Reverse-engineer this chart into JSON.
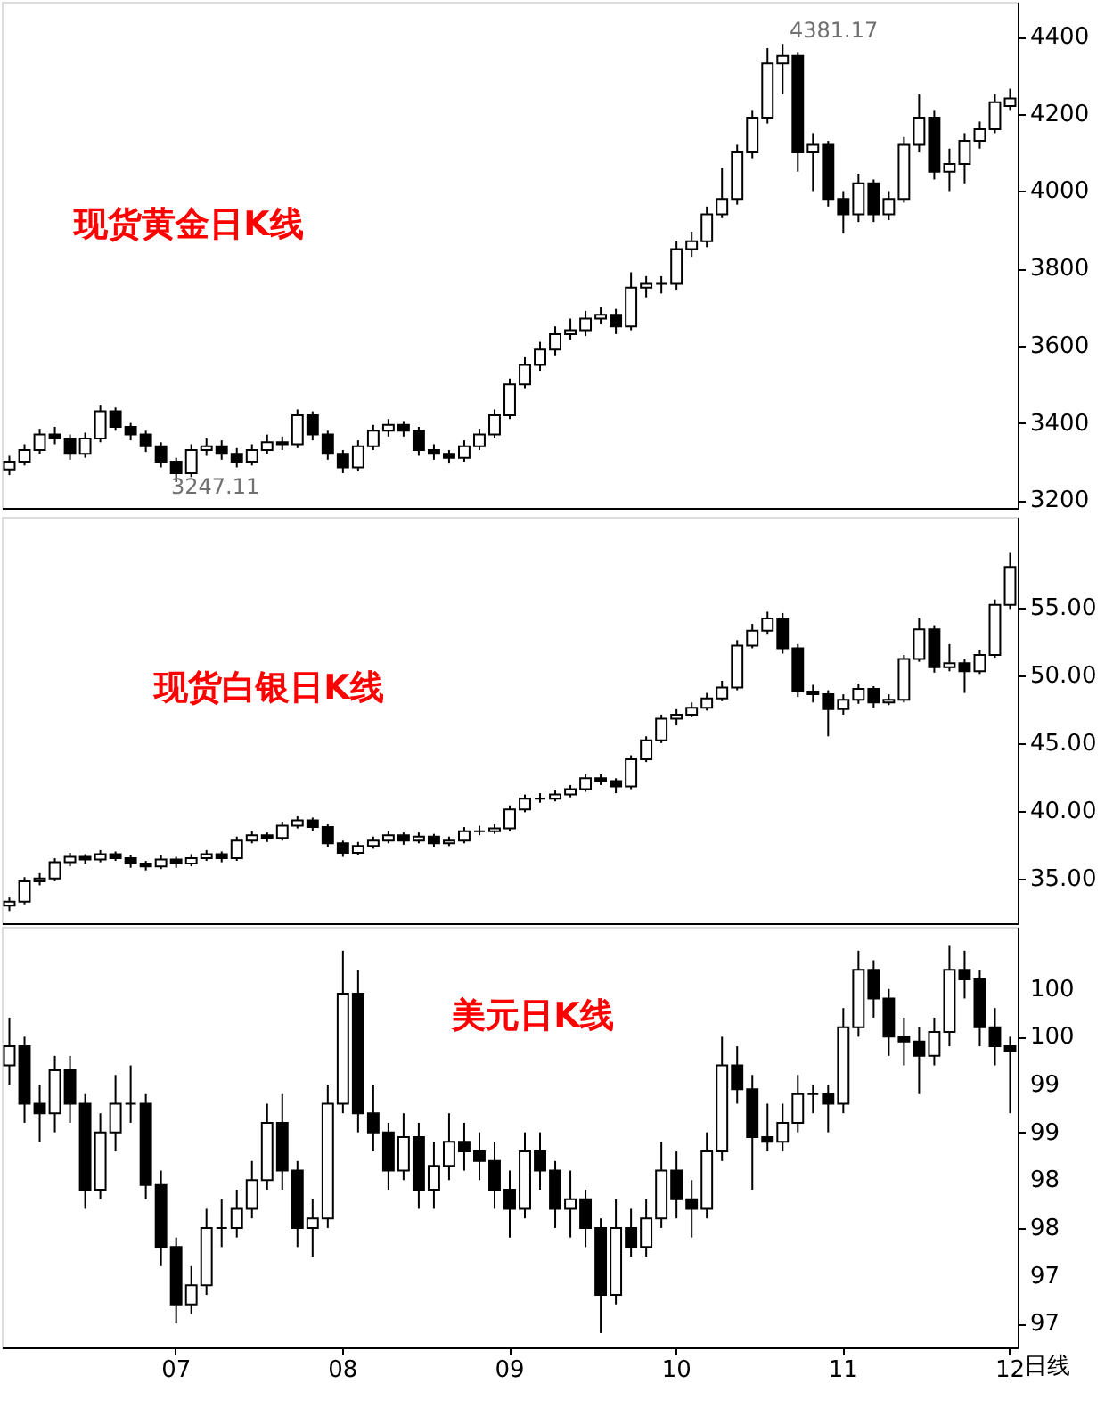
{
  "chart_data": [
    {
      "type": "candlestick",
      "title": "现货黄金日K线",
      "categories": [
        null,
        null,
        null,
        null,
        null,
        null,
        null,
        null,
        null,
        null,
        null,
        "07",
        null,
        null,
        null,
        null,
        null,
        null,
        null,
        null,
        null,
        null,
        "08",
        null,
        null,
        null,
        null,
        null,
        null,
        null,
        null,
        null,
        null,
        "09",
        null,
        null,
        null,
        null,
        null,
        null,
        null,
        null,
        null,
        null,
        "10",
        null,
        null,
        null,
        null,
        null,
        null,
        null,
        null,
        null,
        null,
        "11",
        null,
        null,
        null,
        null,
        null,
        null,
        null,
        null,
        null,
        null,
        "12"
      ],
      "ohlc": [
        [
          3280,
          3315,
          3265,
          3300
        ],
        [
          3300,
          3345,
          3290,
          3330
        ],
        [
          3330,
          3385,
          3320,
          3370
        ],
        [
          3370,
          3390,
          3345,
          3360
        ],
        [
          3360,
          3370,
          3305,
          3320
        ],
        [
          3320,
          3375,
          3310,
          3360
        ],
        [
          3360,
          3445,
          3350,
          3430
        ],
        [
          3430,
          3440,
          3380,
          3390
        ],
        [
          3390,
          3400,
          3355,
          3370
        ],
        [
          3370,
          3380,
          3325,
          3340
        ],
        [
          3340,
          3350,
          3285,
          3300
        ],
        [
          3300,
          3310,
          3247.11,
          3270
        ],
        [
          3270,
          3345,
          3260,
          3330
        ],
        [
          3330,
          3360,
          3315,
          3340
        ],
        [
          3340,
          3355,
          3305,
          3320
        ],
        [
          3320,
          3335,
          3285,
          3300
        ],
        [
          3300,
          3345,
          3290,
          3330
        ],
        [
          3330,
          3370,
          3320,
          3350
        ],
        [
          3350,
          3365,
          3330,
          3345
        ],
        [
          3345,
          3435,
          3335,
          3420
        ],
        [
          3420,
          3430,
          3355,
          3370
        ],
        [
          3370,
          3380,
          3305,
          3320
        ],
        [
          3320,
          3330,
          3270,
          3285
        ],
        [
          3285,
          3355,
          3275,
          3340
        ],
        [
          3340,
          3395,
          3330,
          3380
        ],
        [
          3380,
          3410,
          3365,
          3395
        ],
        [
          3395,
          3405,
          3365,
          3380
        ],
        [
          3380,
          3390,
          3315,
          3330
        ],
        [
          3330,
          3345,
          3305,
          3320
        ],
        [
          3320,
          3330,
          3295,
          3310
        ],
        [
          3310,
          3355,
          3300,
          3340
        ],
        [
          3340,
          3385,
          3330,
          3370
        ],
        [
          3370,
          3435,
          3360,
          3420
        ],
        [
          3420,
          3515,
          3410,
          3500
        ],
        [
          3500,
          3570,
          3490,
          3550
        ],
        [
          3550,
          3610,
          3535,
          3590
        ],
        [
          3590,
          3650,
          3575,
          3630
        ],
        [
          3630,
          3670,
          3615,
          3640
        ],
        [
          3640,
          3690,
          3625,
          3670
        ],
        [
          3670,
          3700,
          3655,
          3680
        ],
        [
          3680,
          3695,
          3630,
          3650
        ],
        [
          3650,
          3790,
          3640,
          3750
        ],
        [
          3750,
          3780,
          3725,
          3760
        ],
        [
          3760,
          3780,
          3735,
          3760
        ],
        [
          3760,
          3870,
          3745,
          3850
        ],
        [
          3850,
          3895,
          3830,
          3870
        ],
        [
          3870,
          3960,
          3855,
          3940
        ],
        [
          3940,
          4060,
          3930,
          3980
        ],
        [
          3980,
          4120,
          3965,
          4100
        ],
        [
          4100,
          4210,
          4085,
          4190
        ],
        [
          4190,
          4370,
          4175,
          4330
        ],
        [
          4330,
          4381.17,
          4250,
          4350
        ],
        [
          4350,
          4360,
          4050,
          4100
        ],
        [
          4100,
          4150,
          4000,
          4120
        ],
        [
          4120,
          4130,
          3960,
          3980
        ],
        [
          3980,
          4000,
          3890,
          3940
        ],
        [
          3940,
          4045,
          3920,
          4020
        ],
        [
          4020,
          4030,
          3920,
          3940
        ],
        [
          3940,
          4000,
          3925,
          3980
        ],
        [
          3980,
          4140,
          3970,
          4120
        ],
        [
          4120,
          4250,
          4100,
          4190
        ],
        [
          4190,
          4210,
          4030,
          4050
        ],
        [
          4050,
          4110,
          4000,
          4070
        ],
        [
          4070,
          4150,
          4020,
          4130
        ],
        [
          4130,
          4180,
          4110,
          4160
        ],
        [
          4160,
          4250,
          4150,
          4230
        ],
        [
          4220,
          4265,
          4210,
          4240
        ]
      ],
      "ylim": [
        3180,
        4490
      ],
      "yticks": [
        3200,
        3400,
        3600,
        3800,
        4000,
        4200,
        4400
      ],
      "tick_labels": "y",
      "annotations": [
        "4381.17",
        "3247.11"
      ]
    },
    {
      "type": "candlestick",
      "title": "现货白银日K线",
      "categories": [
        null,
        null,
        null,
        null,
        null,
        null,
        null,
        null,
        null,
        null,
        null,
        "07",
        null,
        null,
        null,
        null,
        null,
        null,
        null,
        null,
        null,
        null,
        "08",
        null,
        null,
        null,
        null,
        null,
        null,
        null,
        null,
        null,
        null,
        "09",
        null,
        null,
        null,
        null,
        null,
        null,
        null,
        null,
        null,
        null,
        "10",
        null,
        null,
        null,
        null,
        null,
        null,
        null,
        null,
        null,
        null,
        "11",
        null,
        null,
        null,
        null,
        null,
        null,
        null,
        null,
        null,
        null,
        "12"
      ],
      "ohlc": [
        [
          33.0,
          33.6,
          32.6,
          33.3
        ],
        [
          33.3,
          35.1,
          33.1,
          34.8
        ],
        [
          34.8,
          35.4,
          34.5,
          35.0
        ],
        [
          35.0,
          36.5,
          34.8,
          36.2
        ],
        [
          36.2,
          36.9,
          35.9,
          36.6
        ],
        [
          36.6,
          36.8,
          36.1,
          36.4
        ],
        [
          36.4,
          37.1,
          36.2,
          36.8
        ],
        [
          36.8,
          37.0,
          36.3,
          36.5
        ],
        [
          36.5,
          36.7,
          35.8,
          36.1
        ],
        [
          36.1,
          36.3,
          35.6,
          35.9
        ],
        [
          35.9,
          36.7,
          35.7,
          36.4
        ],
        [
          36.4,
          36.6,
          35.8,
          36.1
        ],
        [
          36.1,
          36.8,
          35.9,
          36.5
        ],
        [
          36.5,
          37.1,
          36.3,
          36.8
        ],
        [
          36.8,
          37.0,
          36.2,
          36.5
        ],
        [
          36.5,
          38.1,
          36.3,
          37.8
        ],
        [
          37.8,
          38.5,
          37.6,
          38.2
        ],
        [
          38.2,
          38.4,
          37.7,
          38.0
        ],
        [
          38.0,
          39.2,
          37.8,
          38.9
        ],
        [
          38.9,
          39.6,
          38.7,
          39.3
        ],
        [
          39.3,
          39.5,
          38.5,
          38.8
        ],
        [
          38.8,
          39.0,
          37.3,
          37.6
        ],
        [
          37.6,
          37.8,
          36.6,
          36.9
        ],
        [
          36.9,
          37.7,
          36.7,
          37.4
        ],
        [
          37.4,
          38.1,
          37.2,
          37.8
        ],
        [
          37.8,
          38.5,
          37.6,
          38.2
        ],
        [
          38.2,
          38.4,
          37.5,
          37.8
        ],
        [
          37.8,
          38.4,
          37.6,
          38.1
        ],
        [
          38.1,
          38.3,
          37.3,
          37.6
        ],
        [
          37.6,
          38.1,
          37.4,
          37.8
        ],
        [
          37.8,
          38.8,
          37.6,
          38.5
        ],
        [
          38.5,
          38.9,
          38.2,
          38.5
        ],
        [
          38.5,
          39.0,
          38.3,
          38.7
        ],
        [
          38.7,
          40.4,
          38.5,
          40.1
        ],
        [
          40.1,
          41.2,
          39.9,
          40.9
        ],
        [
          40.9,
          41.3,
          40.6,
          40.9
        ],
        [
          40.9,
          41.5,
          40.7,
          41.2
        ],
        [
          41.2,
          41.9,
          41.0,
          41.6
        ],
        [
          41.6,
          42.7,
          41.4,
          42.4
        ],
        [
          42.4,
          42.7,
          41.9,
          42.2
        ],
        [
          42.2,
          42.4,
          41.3,
          41.8
        ],
        [
          41.8,
          44.1,
          41.6,
          43.8
        ],
        [
          43.8,
          45.5,
          43.6,
          45.2
        ],
        [
          45.2,
          47.1,
          45.0,
          46.8
        ],
        [
          46.8,
          47.5,
          46.3,
          47.1
        ],
        [
          47.1,
          48.0,
          46.9,
          47.6
        ],
        [
          47.6,
          48.7,
          47.4,
          48.3
        ],
        [
          48.3,
          49.6,
          48.1,
          49.1
        ],
        [
          49.1,
          52.6,
          48.9,
          52.2
        ],
        [
          52.2,
          53.8,
          52.0,
          53.3
        ],
        [
          53.3,
          54.7,
          53.0,
          54.2
        ],
        [
          54.2,
          54.6,
          51.6,
          52.0
        ],
        [
          52.0,
          52.3,
          48.4,
          48.8
        ],
        [
          48.8,
          49.3,
          48.0,
          48.6
        ],
        [
          48.6,
          48.9,
          45.5,
          47.5
        ],
        [
          47.5,
          48.6,
          47.1,
          48.2
        ],
        [
          48.2,
          49.4,
          47.9,
          49.0
        ],
        [
          49.0,
          49.2,
          47.6,
          48.0
        ],
        [
          48.0,
          48.6,
          47.8,
          48.2
        ],
        [
          48.2,
          51.5,
          48.0,
          51.2
        ],
        [
          51.2,
          54.2,
          51.0,
          53.4
        ],
        [
          53.4,
          53.7,
          50.2,
          50.6
        ],
        [
          50.6,
          52.3,
          50.3,
          50.9
        ],
        [
          50.9,
          51.2,
          48.7,
          50.3
        ],
        [
          50.3,
          51.9,
          50.1,
          51.5
        ],
        [
          51.5,
          55.6,
          51.3,
          55.2
        ],
        [
          55.2,
          59.1,
          54.9,
          58.0
        ]
      ],
      "ylim": [
        31.7,
        61.7
      ],
      "yticks": [
        {
          "value": 35,
          "label": "35.00"
        },
        {
          "value": 40,
          "label": "40.00"
        },
        {
          "value": 45,
          "label": "45.00"
        },
        {
          "value": 50,
          "label": "50.00"
        },
        {
          "value": 55,
          "label": "55.00"
        }
      ],
      "tick_labels": "y"
    },
    {
      "type": "candlestick",
      "title": "美元日K线",
      "xlabel": "日线",
      "categories": [
        null,
        null,
        null,
        null,
        null,
        null,
        null,
        null,
        null,
        null,
        null,
        "07",
        null,
        null,
        null,
        null,
        null,
        null,
        null,
        null,
        null,
        null,
        "08",
        null,
        null,
        null,
        null,
        null,
        null,
        null,
        null,
        null,
        null,
        "09",
        null,
        null,
        null,
        null,
        null,
        null,
        null,
        null,
        null,
        null,
        "10",
        null,
        null,
        null,
        null,
        null,
        null,
        null,
        null,
        null,
        null,
        "11",
        null,
        null,
        null,
        null,
        null,
        null,
        null,
        null,
        null,
        null,
        "12"
      ],
      "ohlc": [
        [
          99.7,
          100.2,
          99.5,
          99.9
        ],
        [
          99.9,
          100.0,
          99.1,
          99.3
        ],
        [
          99.3,
          99.5,
          98.9,
          99.2
        ],
        [
          99.2,
          99.8,
          99.0,
          99.65
        ],
        [
          99.65,
          99.8,
          99.1,
          99.3
        ],
        [
          99.3,
          99.4,
          98.2,
          98.4
        ],
        [
          98.4,
          99.2,
          98.3,
          99.0
        ],
        [
          99.0,
          99.6,
          98.8,
          99.3
        ],
        [
          99.3,
          99.7,
          99.1,
          99.3
        ],
        [
          99.3,
          99.4,
          98.3,
          98.45
        ],
        [
          98.45,
          98.6,
          97.6,
          97.8
        ],
        [
          97.8,
          97.9,
          97.0,
          97.2
        ],
        [
          97.2,
          97.6,
          97.1,
          97.4
        ],
        [
          97.4,
          98.2,
          97.3,
          98.0
        ],
        [
          98.0,
          98.3,
          97.8,
          98.0
        ],
        [
          98.0,
          98.4,
          97.9,
          98.2
        ],
        [
          98.2,
          98.7,
          98.1,
          98.5
        ],
        [
          98.5,
          99.3,
          98.4,
          99.1
        ],
        [
          99.1,
          99.4,
          98.4,
          98.6
        ],
        [
          98.6,
          98.7,
          97.8,
          98.0
        ],
        [
          98.0,
          98.3,
          97.7,
          98.1
        ],
        [
          98.1,
          99.5,
          98.0,
          99.3
        ],
        [
          99.3,
          100.9,
          99.2,
          100.45
        ],
        [
          100.45,
          100.7,
          99.0,
          99.2
        ],
        [
          99.2,
          99.5,
          98.8,
          99.0
        ],
        [
          99.0,
          99.1,
          98.4,
          98.6
        ],
        [
          98.6,
          99.2,
          98.5,
          98.95
        ],
        [
          98.95,
          99.1,
          98.2,
          98.4
        ],
        [
          98.4,
          98.9,
          98.2,
          98.65
        ],
        [
          98.65,
          99.2,
          98.5,
          98.9
        ],
        [
          98.9,
          99.1,
          98.6,
          98.8
        ],
        [
          98.8,
          99.0,
          98.5,
          98.7
        ],
        [
          98.7,
          98.9,
          98.2,
          98.4
        ],
        [
          98.4,
          98.6,
          97.9,
          98.2
        ],
        [
          98.2,
          99.0,
          98.1,
          98.8
        ],
        [
          98.8,
          99.0,
          98.4,
          98.6
        ],
        [
          98.6,
          98.7,
          98.0,
          98.2
        ],
        [
          98.2,
          98.6,
          97.9,
          98.3
        ],
        [
          98.3,
          98.4,
          97.8,
          98.0
        ],
        [
          98.0,
          98.1,
          96.9,
          97.3
        ],
        [
          97.3,
          98.3,
          97.2,
          98.0
        ],
        [
          98.0,
          98.2,
          97.7,
          97.8
        ],
        [
          97.8,
          98.3,
          97.7,
          98.1
        ],
        [
          98.1,
          98.9,
          98.0,
          98.6
        ],
        [
          98.6,
          98.8,
          98.1,
          98.3
        ],
        [
          98.3,
          98.5,
          97.9,
          98.2
        ],
        [
          98.2,
          99.0,
          98.1,
          98.8
        ],
        [
          98.8,
          100.0,
          98.7,
          99.7
        ],
        [
          99.7,
          99.9,
          99.3,
          99.45
        ],
        [
          99.45,
          99.6,
          98.4,
          98.95
        ],
        [
          98.95,
          99.3,
          98.8,
          98.9
        ],
        [
          98.9,
          99.3,
          98.8,
          99.1
        ],
        [
          99.1,
          99.6,
          99.0,
          99.4
        ],
        [
          99.4,
          99.5,
          99.2,
          99.4
        ],
        [
          99.4,
          99.5,
          99.0,
          99.3
        ],
        [
          99.3,
          100.3,
          99.2,
          100.1
        ],
        [
          100.1,
          100.9,
          100.0,
          100.7
        ],
        [
          100.7,
          100.8,
          100.2,
          100.4
        ],
        [
          100.4,
          100.5,
          99.8,
          100.0
        ],
        [
          100.0,
          100.2,
          99.7,
          99.95
        ],
        [
          99.95,
          100.1,
          99.4,
          99.8
        ],
        [
          99.8,
          100.2,
          99.7,
          100.05
        ],
        [
          100.05,
          100.95,
          99.9,
          100.7
        ],
        [
          100.7,
          100.9,
          100.4,
          100.6
        ],
        [
          100.6,
          100.7,
          99.9,
          100.1
        ],
        [
          100.1,
          100.3,
          99.7,
          99.9
        ],
        [
          99.9,
          100.0,
          99.2,
          99.85
        ]
      ],
      "ylim": [
        96.75,
        101.15
      ],
      "yticks": [
        {
          "value": 97,
          "label": "97"
        },
        {
          "value": 97.5,
          "label": "97"
        },
        {
          "value": 98,
          "label": "98"
        },
        {
          "value": 98.5,
          "label": "98"
        },
        {
          "value": 99,
          "label": "99"
        },
        {
          "value": 99.5,
          "label": "99"
        },
        {
          "value": 100,
          "label": "100"
        },
        {
          "value": 100.5,
          "label": "100"
        }
      ]
    }
  ]
}
